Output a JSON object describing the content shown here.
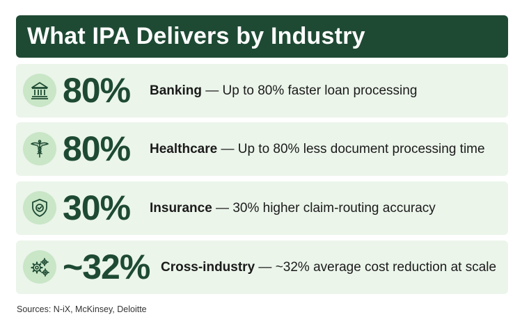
{
  "header": {
    "title": "What IPA Delivers by Industry"
  },
  "rows": [
    {
      "icon": "bank-icon",
      "stat": "80%",
      "industry": "Banking",
      "separator": " — ",
      "description": "Up to 80% faster loan processing"
    },
    {
      "icon": "caduceus-icon",
      "stat": "80%",
      "industry": "Healthcare",
      "separator": " — ",
      "description": "Up to 80% less document processing time"
    },
    {
      "icon": "shield-check-icon",
      "stat": "30%",
      "industry": "Insurance",
      "separator": " — ",
      "description": "30% higher claim-routing accuracy"
    },
    {
      "icon": "gears-icon",
      "stat": "~32%",
      "industry": "Cross-industry",
      "separator": " — ",
      "description": "~32% average cost reduction at scale"
    }
  ],
  "footer": {
    "sources": "Sources: N-iX, McKinsey, Deloitte"
  },
  "colors": {
    "header_bg": "#1e4a33",
    "row_bg": "#ebf5ea",
    "icon_bg": "#c9e6c7",
    "stat_color": "#1e4a33"
  }
}
